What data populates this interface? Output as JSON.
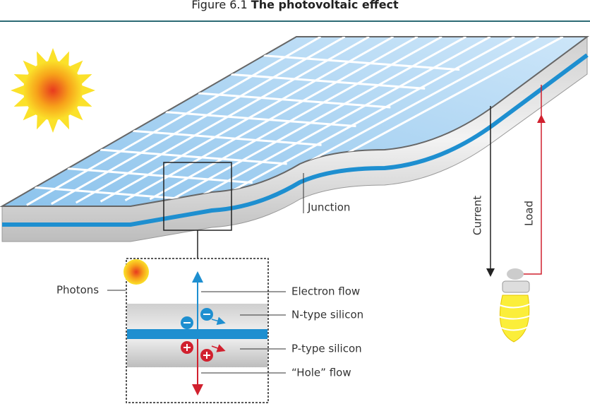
{
  "header": {
    "figure": "Figure 6.1",
    "title": "The photovoltaic effect"
  },
  "labels": {
    "junction": "Junction",
    "current": "Current",
    "load": "Load",
    "photons": "Photons",
    "electron_flow": "Electron flow",
    "n_type": "N-type silicon",
    "p_type": "P-type silicon",
    "hole_flow": "“Hole” flow"
  }
}
